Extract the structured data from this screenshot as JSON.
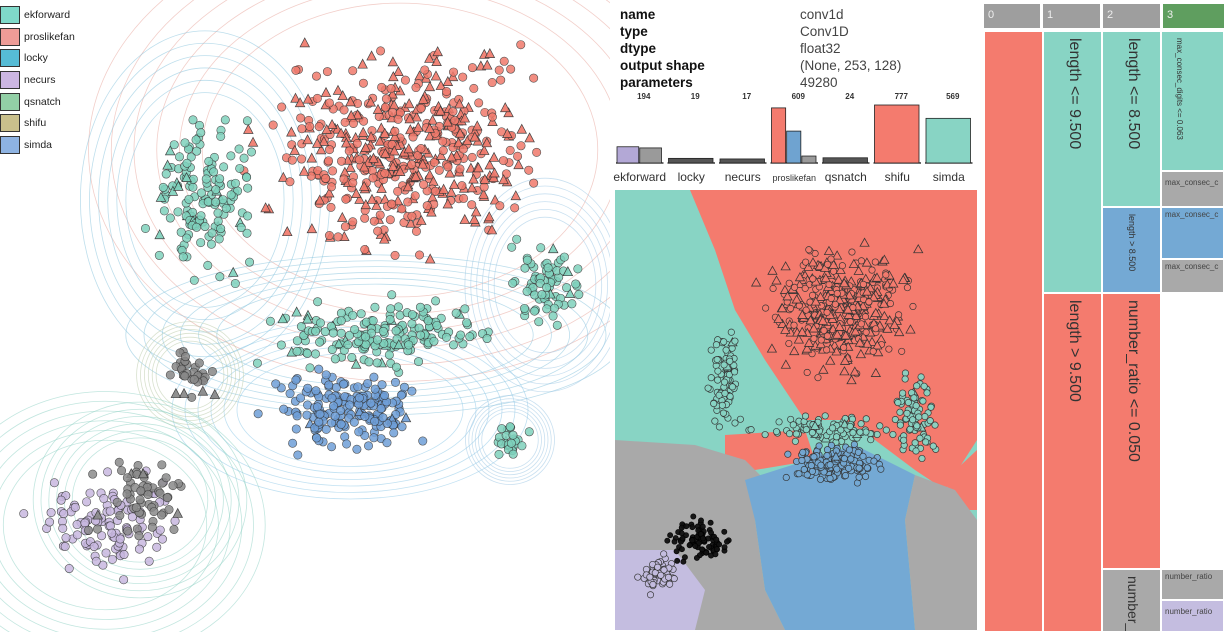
{
  "legend": {
    "items": [
      {
        "label": "ekforward",
        "color": "#7fd9c9"
      },
      {
        "label": "proslikefan",
        "color": "#ee9c97"
      },
      {
        "label": "locky",
        "color": "#56bcd6"
      },
      {
        "label": "necurs",
        "color": "#ccb6e2"
      },
      {
        "label": "qsnatch",
        "color": "#92cfa6"
      },
      {
        "label": "shifu",
        "color": "#c9c08c"
      },
      {
        "label": "simda",
        "color": "#8eb3e2"
      }
    ]
  },
  "layer_info": {
    "name_key": "name",
    "name_val": "conv1d",
    "type_key": "type",
    "type_val": "Conv1D",
    "dtype_key": "dtype",
    "dtype_val": "float32",
    "output_key": "output shape",
    "output_val": "(None, 253, 128)",
    "params_key": "parameters",
    "params_val": "49280"
  },
  "class_bars": {
    "categories": [
      "ekforward",
      "locky",
      "necurs",
      "proslikefan",
      "qsnatch",
      "shifu",
      "simda"
    ],
    "counts": [
      "194",
      "19",
      "17",
      "609",
      "24",
      "777",
      "569"
    ],
    "mini": [
      [
        {
          "value": 0.28,
          "color": "#b3a8d6"
        },
        {
          "value": 0.26,
          "color": "#9a9a9a"
        }
      ],
      [
        {
          "value": 0.08,
          "color": "#555555"
        }
      ],
      [
        {
          "value": 0.07,
          "color": "#555555"
        }
      ],
      [
        {
          "value": 0.95,
          "color": "#f47b6e"
        },
        {
          "value": 0.55,
          "color": "#6fa3d0"
        },
        {
          "value": 0.12,
          "color": "#9a9a9a"
        }
      ],
      [
        {
          "value": 0.09,
          "color": "#555555"
        }
      ],
      [
        {
          "value": 1.0,
          "color": "#f47b6e"
        }
      ],
      [
        {
          "value": 0.77,
          "color": "#88d4c4"
        }
      ]
    ]
  },
  "tree": {
    "depth_headers": [
      "0",
      "1",
      "2",
      "3"
    ],
    "depth_colors": [
      "#9e9e9e",
      "#9e9e9e",
      "#9e9e9e",
      "#5f9e5f"
    ],
    "node_len_le_95": "length <= 9.500",
    "node_len_gt_95": "length > 9.500",
    "node_len_le_85": "length <= 8.500",
    "node_len_gt_85": "length > 8.500",
    "node_num_le_005": "number_ratio <= 0.050",
    "node_num_gt": "number_",
    "leaf_max_digits": "max_consec_digits <= 0.063",
    "leaf_max_1": "max_consec_c",
    "leaf_max_2": "max_consec_c",
    "leaf_max_3": "max_consec_c",
    "leaf_num_1": "number_ratio",
    "leaf_num_2": "number_ratio"
  },
  "colors": {
    "red": "#f47b6e",
    "teal": "#88d4c4",
    "blue": "#74a9d4",
    "gray": "#a9a9a9",
    "lavender": "#c4bde0"
  }
}
